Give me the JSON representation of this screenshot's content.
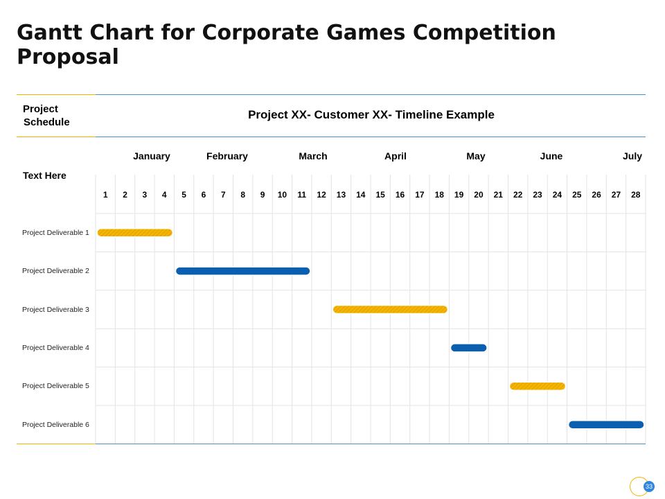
{
  "title": "Gantt Chart for Corporate Games Competition Proposal",
  "header": {
    "project_schedule_line1": "Project",
    "project_schedule_line2": "Schedule",
    "timeline_title": "Project XX- Customer XX- Timeline Example",
    "text_here": "Text Here"
  },
  "colors": {
    "gold": "#F5B400",
    "blue": "#0B5FB0",
    "accent_line": "#4A90C8"
  },
  "page_number": "33",
  "chart_data": {
    "type": "gantt",
    "title": "Project XX- Customer XX- Timeline Example",
    "months": [
      "January",
      "February",
      "March",
      "April",
      "May",
      "June",
      "July"
    ],
    "days": [
      "1",
      "2",
      "3",
      "4",
      "5",
      "6",
      "7",
      "8",
      "9",
      "10",
      "11",
      "12",
      "13",
      "14",
      "15",
      "16",
      "17",
      "18",
      "19",
      "20",
      "21",
      "22",
      "23",
      "24",
      "25",
      "26",
      "27",
      "28"
    ],
    "tasks": [
      {
        "name": "Project Deliverable 1",
        "start": 1,
        "end": 4,
        "color": "gold"
      },
      {
        "name": "Project Deliverable 2",
        "start": 5,
        "end": 11,
        "color": "blue"
      },
      {
        "name": "Project Deliverable 3",
        "start": 13,
        "end": 18,
        "color": "gold"
      },
      {
        "name": "Project Deliverable 4",
        "start": 19,
        "end": 20,
        "color": "blue"
      },
      {
        "name": "Project Deliverable 5",
        "start": 22,
        "end": 24,
        "color": "gold"
      },
      {
        "name": "Project Deliverable 6",
        "start": 25,
        "end": 28,
        "color": "blue"
      }
    ]
  }
}
